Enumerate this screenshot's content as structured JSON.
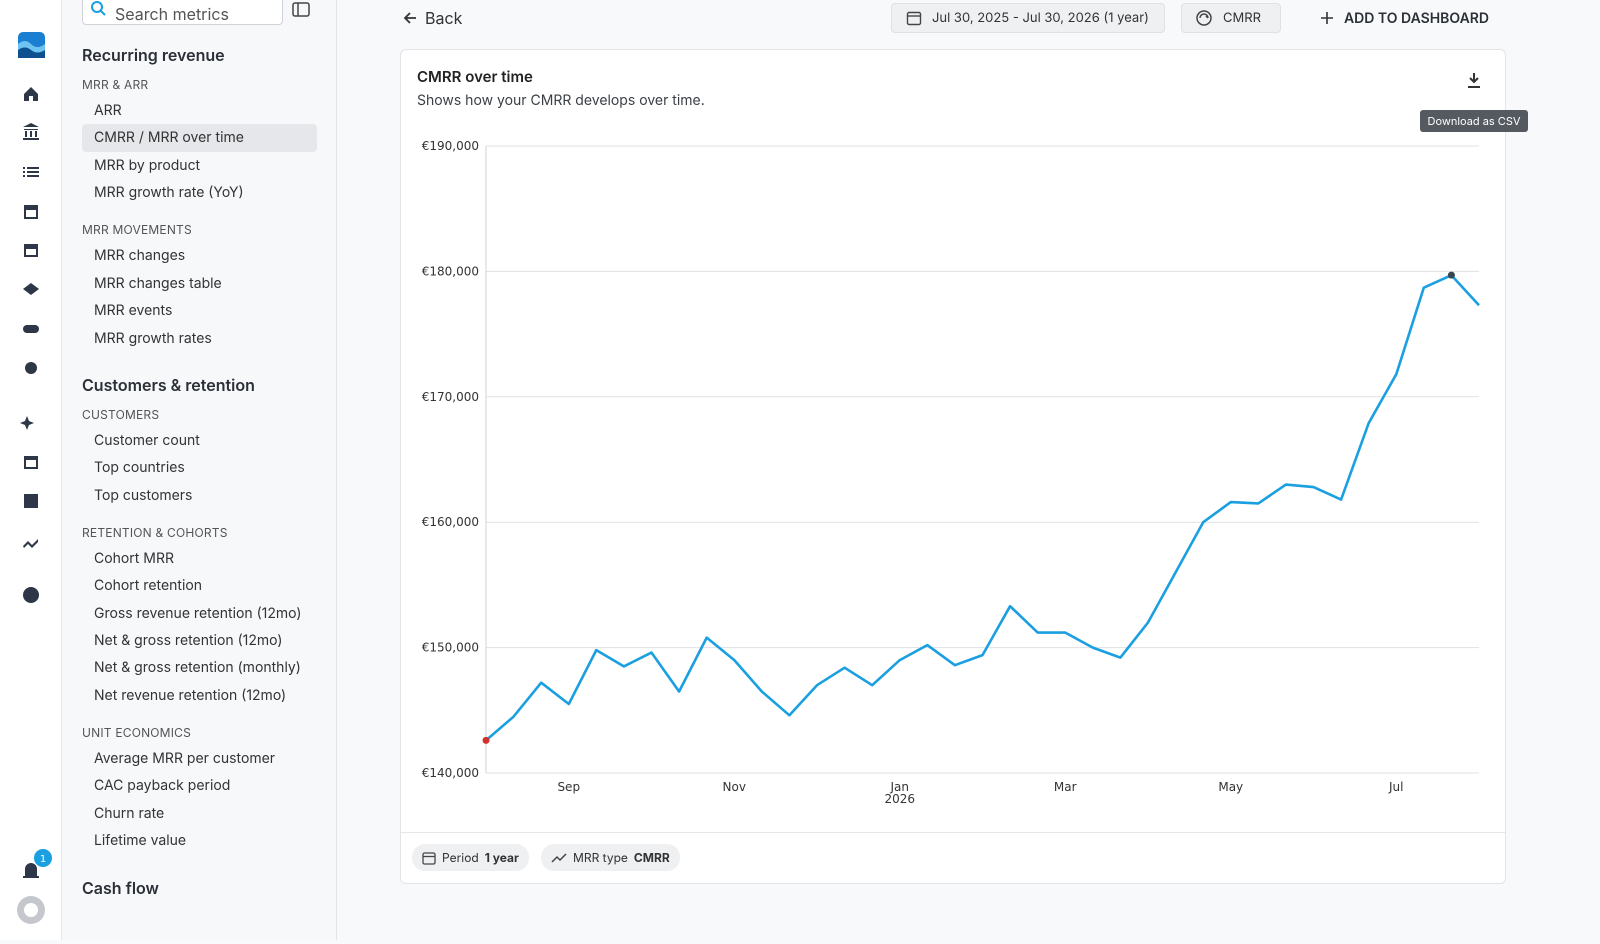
{
  "sidebar": {
    "search_placeholder": "Search metrics",
    "sections": [
      {
        "title": "Recurring revenue",
        "groups": [
          {
            "title": "MRR & ARR",
            "items": [
              "ARR",
              {
                "label": "CMRR / MRR over time",
                "selected": true
              },
              "MRR by product",
              "MRR growth rate (YoY)"
            ]
          },
          {
            "title": "MRR MOVEMENTS",
            "items": [
              "MRR changes",
              "MRR changes table",
              "MRR events",
              "MRR growth rates"
            ]
          }
        ]
      },
      {
        "title": "Customers & retention",
        "groups": [
          {
            "title": "CUSTOMERS",
            "items": [
              "Customer count",
              "Top countries",
              "Top customers"
            ]
          },
          {
            "title": "RETENTION & COHORTS",
            "items": [
              "Cohort MRR",
              "Cohort retention",
              "Gross revenue retention (12mo)",
              "Net & gross retention (12mo)",
              "Net & gross retention (monthly)",
              "Net revenue retention (12mo)"
            ]
          },
          {
            "title": "UNIT ECONOMICS",
            "items": [
              "Average MRR per customer",
              "CAC payback period",
              "Churn rate",
              "Lifetime value"
            ]
          }
        ]
      },
      {
        "title": "Cash flow",
        "groups": []
      }
    ]
  },
  "notifications": "1",
  "toolbar": {
    "back": "Back",
    "date_range": "Jul 30, 2025 - Jul 30, 2026 (1 year)",
    "mrr_type": "CMRR",
    "add": "ADD TO DASHBOARD"
  },
  "card": {
    "download_tooltip": "Download as CSV",
    "footer": {
      "period_label": "Period",
      "period_value": "1 year",
      "type_label": "MRR type",
      "type_value": "CMRR"
    }
  },
  "chart_data": {
    "type": "line",
    "title": "CMRR over time",
    "subtitle": "Shows how your CMRR develops over time.",
    "categories": [
      null,
      null,
      null,
      "Sep",
      null,
      null,
      null,
      null,
      null,
      "Nov",
      null,
      null,
      null,
      null,
      null,
      "Jan",
      null,
      null,
      null,
      null,
      null,
      "Mar",
      null,
      null,
      null,
      null,
      null,
      "May",
      null,
      null,
      null,
      null,
      null,
      "Jul",
      null,
      null,
      null
    ],
    "x_year_label": "2026",
    "values": [
      142600,
      144500,
      147200,
      145500,
      149800,
      148500,
      149600,
      146500,
      150800,
      149000,
      146500,
      144600,
      147000,
      148400,
      147000,
      149000,
      150200,
      148600,
      149400,
      153300,
      151200,
      151200,
      150000,
      149200,
      152000,
      156000,
      160000,
      161600,
      161500,
      163000,
      162800,
      161800,
      167900,
      171800,
      178700,
      179700,
      177300
    ],
    "color": "#1a9fe0",
    "start_marker_color": "#d32f2f",
    "max_marker_color": "#37474f",
    "ylim": [
      140000,
      190000
    ],
    "yticks": [
      {
        "value": 140000,
        "label": "€140,000"
      },
      {
        "value": 150000,
        "label": "€150,000"
      },
      {
        "value": 160000,
        "label": "€160,000"
      },
      {
        "value": 170000,
        "label": "€170,000"
      },
      {
        "value": 180000,
        "label": "€180,000"
      },
      {
        "value": 190000,
        "label": "€190,000"
      }
    ],
    "grid": true
  }
}
